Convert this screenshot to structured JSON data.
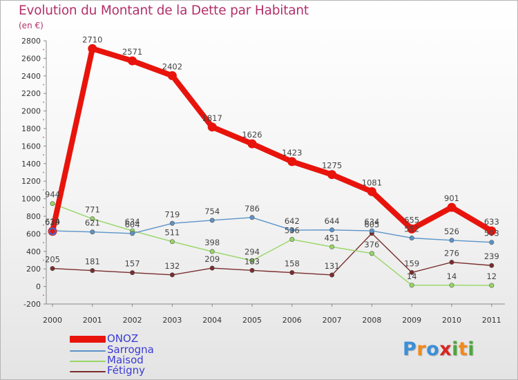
{
  "header": {
    "title": "Evolution du Montant de la Dette par Habitant",
    "subtitle": "(en €)"
  },
  "logo": {
    "text": "Proxiti",
    "letters": [
      {
        "ch": "P",
        "color": "#3b8fd8"
      },
      {
        "ch": "r",
        "color": "#f08a1c"
      },
      {
        "ch": "o",
        "color": "#3b8fd8"
      },
      {
        "ch": "x",
        "color": "#d8261f"
      },
      {
        "ch": "i",
        "color": "#4aa83a"
      },
      {
        "ch": "t",
        "color": "#f08a1c"
      },
      {
        "ch": "i",
        "color": "#4aa83a"
      }
    ]
  },
  "chart_data": {
    "type": "line",
    "title": "Evolution du Montant de la Dette par Habitant",
    "subtitle": "(en €)",
    "xlabel": "",
    "ylabel": "",
    "x": [
      "2000",
      "2001",
      "2002",
      "2003",
      "2004",
      "2005",
      "2006",
      "2007",
      "2008",
      "2009",
      "2010",
      "2011"
    ],
    "ylim": [
      -200,
      2800
    ],
    "yticks": [
      -200,
      0,
      200,
      400,
      600,
      800,
      1000,
      1200,
      1400,
      1600,
      1800,
      2000,
      2200,
      2400,
      2600,
      2800
    ],
    "grid": false,
    "legend_position": "bottom-left",
    "series": [
      {
        "name": "ONOZ",
        "color": "#e8140c",
        "values": [
          629,
          2710,
          2571,
          2402,
          1817,
          1626,
          1423,
          1275,
          1081,
          655,
          901,
          633
        ],
        "labels": [
          "629",
          "2710",
          "2571",
          "2402",
          "1817",
          "1626",
          "1423",
          "1275",
          "1081",
          "655",
          "901",
          "633"
        ]
      },
      {
        "name": "Sarrogna",
        "color": "#5b93c8",
        "values": [
          634,
          621,
          604,
          719,
          754,
          786,
          642,
          644,
          634,
          552,
          526,
          503
        ],
        "labels": [
          "634",
          "621",
          "604",
          "719",
          "754",
          "786",
          "642",
          "644",
          "634",
          "552",
          "526",
          "503"
        ]
      },
      {
        "name": "Maisod",
        "color": "#96d664",
        "values": [
          944,
          771,
          634,
          511,
          398,
          294,
          536,
          451,
          376,
          14,
          14,
          12
        ],
        "labels": [
          "944",
          "771",
          "634",
          "511",
          "398",
          "294",
          "536",
          "451",
          "376",
          "14",
          "14",
          "12"
        ]
      },
      {
        "name": "Fétigny",
        "color": "#7a2c2c",
        "values": [
          205,
          181,
          157,
          132,
          209,
          183,
          158,
          131,
          605,
          159,
          276,
          239
        ],
        "labels": [
          "205",
          "181",
          "157",
          "132",
          "209",
          "183",
          "158",
          "131",
          "605",
          "159",
          "276",
          "239"
        ]
      }
    ]
  }
}
